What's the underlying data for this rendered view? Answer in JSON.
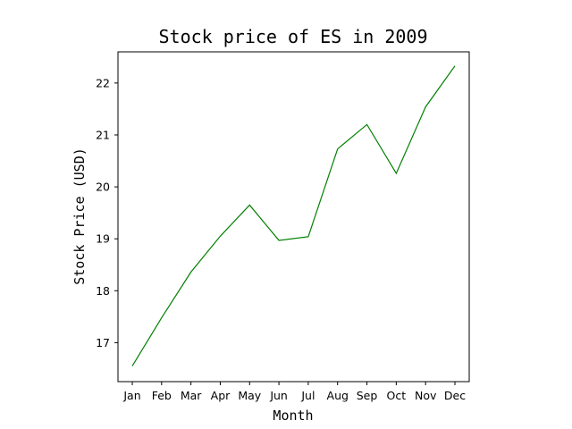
{
  "chart_data": {
    "type": "line",
    "title": "Stock price of ES in 2009",
    "xlabel": "Month",
    "ylabel": "Stock Price (USD)",
    "categories": [
      "Jan",
      "Feb",
      "Mar",
      "Apr",
      "May",
      "Jun",
      "Jul",
      "Aug",
      "Sep",
      "Oct",
      "Nov",
      "Dec"
    ],
    "series": [
      {
        "color": "#008000",
        "values": [
          16.55,
          17.48,
          18.36,
          19.05,
          19.65,
          18.97,
          19.04,
          20.73,
          21.2,
          20.26,
          21.54,
          22.33
        ]
      }
    ],
    "yticks": [
      17,
      18,
      19,
      20,
      21,
      22
    ],
    "ylim": [
      16.25,
      22.6
    ],
    "grid": false,
    "legend": "none"
  }
}
